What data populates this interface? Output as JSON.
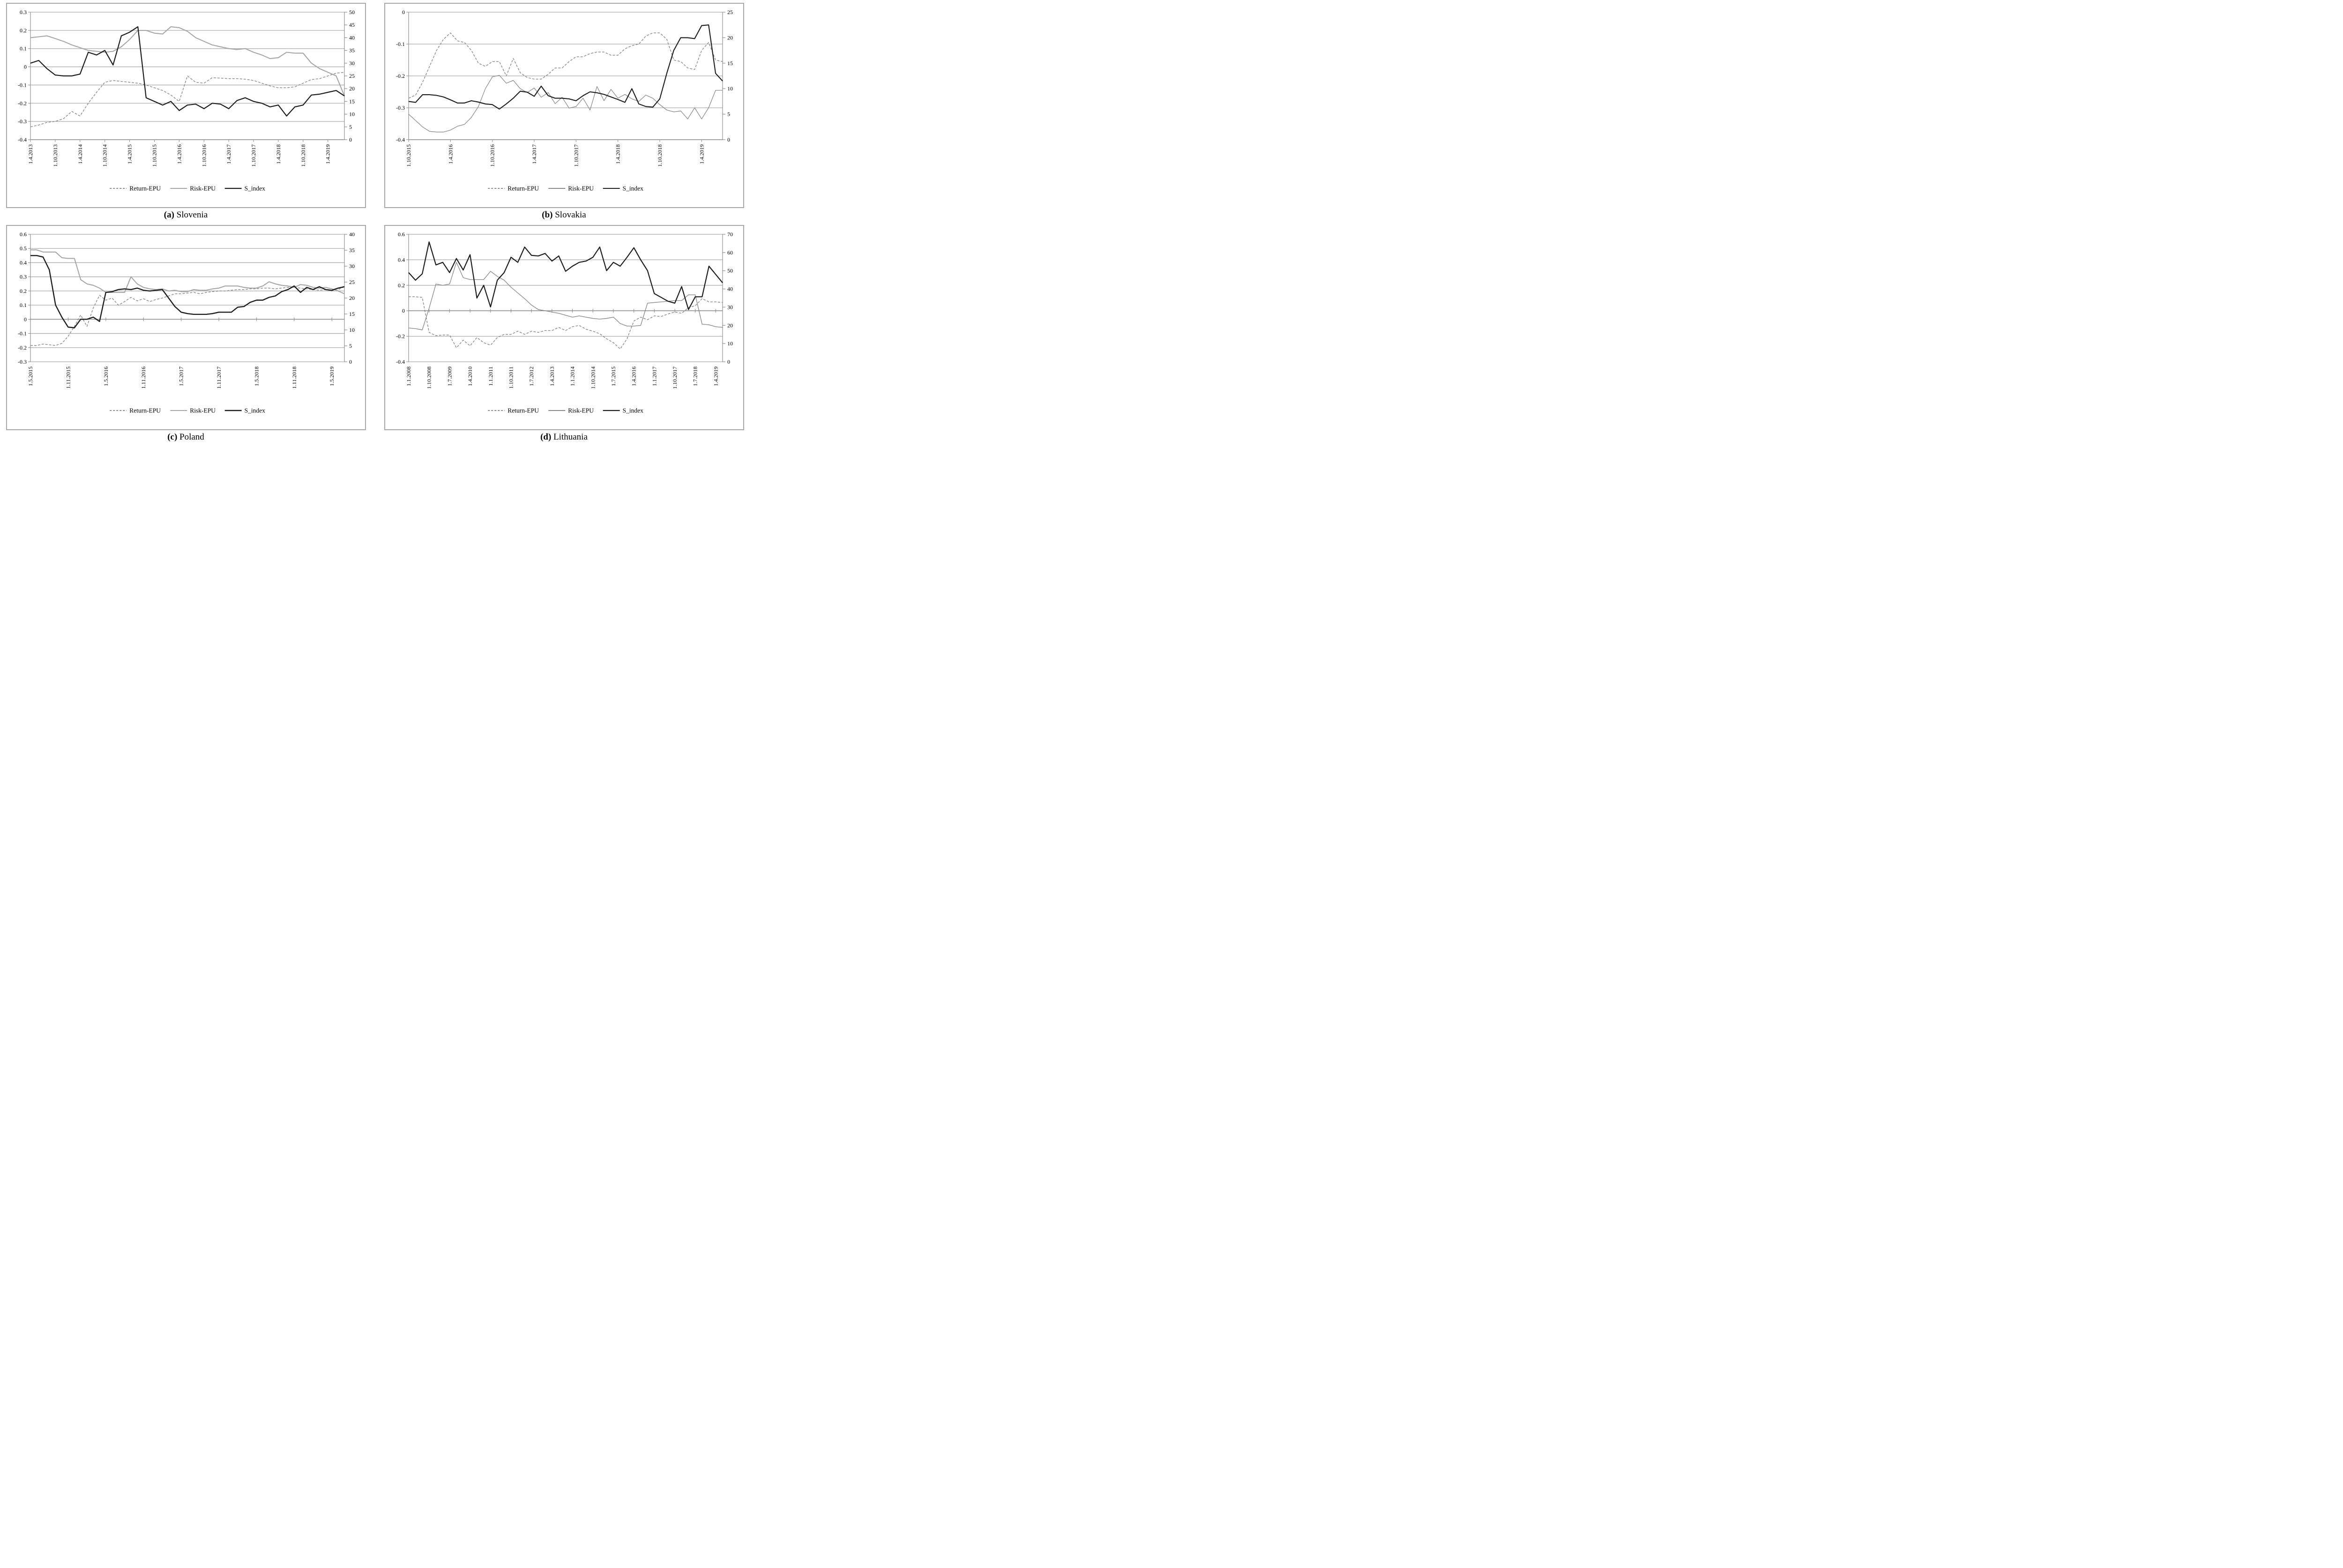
{
  "page": {
    "background": "#ffffff",
    "gridline_color": "#ababab",
    "axis_color": "#8f8f8f",
    "box_border_color": "#a8a8a8",
    "text_color": "#000000"
  },
  "chart_data": [
    {
      "type": "line",
      "id": "slovenia",
      "caption_prefix": "(a)",
      "caption_name": "Slovenia",
      "y_left": {
        "max": 0.3,
        "min": -0.4,
        "ticks": [
          [
            "0.3",
            0.3
          ],
          [
            "0.2",
            0.2
          ],
          [
            "0.1",
            0.1
          ],
          [
            "0",
            0
          ],
          [
            "-0.1",
            -0.1
          ],
          [
            "-0.2",
            -0.2
          ],
          [
            "-0.3",
            -0.3
          ],
          [
            "-0.4",
            -0.4
          ]
        ]
      },
      "y_right_labels": [
        "50",
        "45",
        "40",
        "35",
        "30",
        "25",
        "20",
        "15",
        "10",
        "5",
        "0"
      ],
      "x_tick_step": 3,
      "x_axis_cross": -0.4,
      "x_tick_labels": [
        "1.4.2013",
        "1.10.2013",
        "1.4.2014",
        "1.10.2014",
        "1.4.2015",
        "1.10.2015",
        "1.4.2016",
        "1.10.2016",
        "1.4.2017",
        "1.10.2017",
        "1.4.2018",
        "1.10.2018",
        "1.4.2019"
      ],
      "series": [
        {
          "name": "Return-EPU",
          "key": "return_epu",
          "stroke": "#8c8c8c",
          "width": 1.5,
          "dash": "5,3",
          "values": [
            -0.33,
            -0.32,
            -0.305,
            -0.3,
            -0.285,
            -0.245,
            -0.27,
            -0.2,
            -0.14,
            -0.085,
            -0.075,
            -0.08,
            -0.085,
            -0.09,
            -0.1,
            -0.115,
            -0.13,
            -0.155,
            -0.19,
            -0.05,
            -0.085,
            -0.09,
            -0.06,
            -0.062,
            -0.065,
            -0.065,
            -0.068,
            -0.075,
            -0.09,
            -0.105,
            -0.115,
            -0.115,
            -0.11,
            -0.09,
            -0.07,
            -0.065,
            -0.05,
            -0.035,
            -0.03
          ]
        },
        {
          "name": "Risk-EPU",
          "key": "risk_epu",
          "stroke": "#a6a6a6",
          "width": 2.1,
          "dash": null,
          "values": [
            0.16,
            0.165,
            0.17,
            0.155,
            0.14,
            0.12,
            0.105,
            0.09,
            0.085,
            0.08,
            0.085,
            0.11,
            0.15,
            0.2,
            0.2,
            0.185,
            0.18,
            0.22,
            0.215,
            0.195,
            0.16,
            0.14,
            0.12,
            0.11,
            0.1,
            0.095,
            0.1,
            0.08,
            0.065,
            0.045,
            0.05,
            0.08,
            0.075,
            0.075,
            0.02,
            -0.01,
            -0.03,
            -0.05,
            -0.16
          ]
        },
        {
          "name": "S_index",
          "key": "s_index",
          "stroke": "#1c1c1c",
          "width": 2.2,
          "dash": null,
          "values": [
            0.02,
            0.035,
            -0.01,
            -0.045,
            -0.05,
            -0.05,
            -0.04,
            0.08,
            0.065,
            0.09,
            0.01,
            0.17,
            0.19,
            0.22,
            -0.17,
            -0.19,
            -0.21,
            -0.19,
            -0.24,
            -0.21,
            -0.205,
            -0.23,
            -0.2,
            -0.205,
            -0.23,
            -0.185,
            -0.17,
            -0.19,
            -0.2,
            -0.22,
            -0.21,
            -0.27,
            -0.22,
            -0.21,
            -0.155,
            -0.15,
            -0.14,
            -0.13,
            -0.16
          ]
        }
      ]
    },
    {
      "type": "line",
      "id": "slovakia",
      "caption_prefix": "(b)",
      "caption_name": "Slovakia",
      "y_left": {
        "max": 0,
        "min": -0.4,
        "ticks": [
          [
            "0",
            0
          ],
          [
            "-0.1",
            -0.1
          ],
          [
            "-0.2",
            -0.2
          ],
          [
            "-0.3",
            -0.3
          ],
          [
            "-0.4",
            -0.4
          ]
        ]
      },
      "y_right_labels": [
        "25",
        "20",
        "15",
        "10",
        "5",
        "0"
      ],
      "x_tick_step": 6,
      "x_axis_cross": -0.4,
      "x_tick_labels": [
        "1.10.2015",
        "1.4.2016",
        "1.10.2016",
        "1.4.2017",
        "1.10.2017",
        "1.4.2018",
        "1.10.2018",
        "1.4.2019"
      ],
      "series": [
        {
          "name": "Return-EPU",
          "key": "return_epu",
          "stroke": "#8c8c8c",
          "width": 1.5,
          "dash": "5,3",
          "values": [
            -0.27,
            -0.26,
            -0.22,
            -0.17,
            -0.12,
            -0.085,
            -0.065,
            -0.09,
            -0.095,
            -0.12,
            -0.16,
            -0.17,
            -0.155,
            -0.155,
            -0.2,
            -0.145,
            -0.19,
            -0.205,
            -0.21,
            -0.21,
            -0.195,
            -0.175,
            -0.175,
            -0.155,
            -0.14,
            -0.14,
            -0.13,
            -0.125,
            -0.125,
            -0.135,
            -0.135,
            -0.115,
            -0.105,
            -0.1,
            -0.075,
            -0.065,
            -0.065,
            -0.085,
            -0.15,
            -0.155,
            -0.175,
            -0.18,
            -0.12,
            -0.095,
            -0.15,
            -0.155
          ]
        },
        {
          "name": "Risk-EPU",
          "key": "risk_epu",
          "stroke": "#8a8a8a",
          "width": 1.3,
          "dash": null,
          "values": [
            -0.32,
            -0.34,
            -0.36,
            -0.374,
            -0.376,
            -0.376,
            -0.37,
            -0.358,
            -0.352,
            -0.33,
            -0.296,
            -0.24,
            -0.203,
            -0.198,
            -0.223,
            -0.214,
            -0.24,
            -0.252,
            -0.238,
            -0.267,
            -0.252,
            -0.287,
            -0.267,
            -0.301,
            -0.296,
            -0.27,
            -0.307,
            -0.233,
            -0.278,
            -0.242,
            -0.27,
            -0.258,
            -0.272,
            -0.28,
            -0.26,
            -0.27,
            -0.29,
            -0.307,
            -0.313,
            -0.31,
            -0.335,
            -0.3,
            -0.335,
            -0.3,
            -0.245,
            -0.245
          ]
        },
        {
          "name": "S_index",
          "key": "s_index",
          "stroke": "#1c1c1c",
          "width": 2.1,
          "dash": null,
          "values": [
            -0.28,
            -0.283,
            -0.259,
            -0.259,
            -0.261,
            -0.266,
            -0.275,
            -0.285,
            -0.285,
            -0.278,
            -0.282,
            -0.288,
            -0.29,
            -0.304,
            -0.288,
            -0.27,
            -0.248,
            -0.251,
            -0.264,
            -0.232,
            -0.262,
            -0.27,
            -0.27,
            -0.272,
            -0.278,
            -0.262,
            -0.25,
            -0.253,
            -0.258,
            -0.266,
            -0.274,
            -0.283,
            -0.24,
            -0.288,
            -0.296,
            -0.298,
            -0.272,
            -0.192,
            -0.12,
            -0.08,
            -0.08,
            -0.083,
            -0.042,
            -0.04,
            -0.192,
            -0.216
          ]
        }
      ]
    },
    {
      "type": "line",
      "id": "poland",
      "caption_prefix": "(c)",
      "caption_name": "Poland",
      "y_left": {
        "max": 0.6,
        "min": -0.3,
        "ticks": [
          [
            "0.6",
            0.6
          ],
          [
            "0.5",
            0.5
          ],
          [
            "0.4",
            0.4
          ],
          [
            "0.3",
            0.3
          ],
          [
            "0.2",
            0.2
          ],
          [
            "0.1",
            0.1
          ],
          [
            "0",
            0
          ],
          [
            "-0.1",
            -0.1
          ],
          [
            "-0.2",
            -0.2
          ],
          [
            "-0.3",
            -0.3
          ]
        ]
      },
      "y_right_labels": [
        "40",
        "35",
        "30",
        "25",
        "20",
        "15",
        "10",
        "5",
        "0"
      ],
      "x_tick_step": 6,
      "x_axis_cross": 0,
      "x_tick_labels": [
        "1.5.2015",
        "1.11.2015",
        "1.5.2016",
        "1.11.2016",
        "1.5.2017",
        "1.11.2017",
        "1.5.2018",
        "1.11.2018",
        "1.5.2019"
      ],
      "series": [
        {
          "name": "Return-EPU",
          "key": "return_epu",
          "stroke": "#8c8c8c",
          "width": 1.5,
          "dash": "5,3",
          "values": [
            -0.185,
            -0.185,
            -0.175,
            -0.18,
            -0.185,
            -0.17,
            -0.12,
            -0.05,
            0.03,
            -0.05,
            0.08,
            0.17,
            0.135,
            0.15,
            0.1,
            0.125,
            0.155,
            0.13,
            0.145,
            0.125,
            0.14,
            0.15,
            0.165,
            0.18,
            0.18,
            0.185,
            0.19,
            0.18,
            0.19,
            0.195,
            0.2,
            0.2,
            0.205,
            0.21,
            0.21,
            0.215,
            0.215,
            0.22,
            0.22,
            0.215,
            0.22,
            0.225,
            0.225,
            0.22,
            0.215,
            0.21,
            0.205,
            0.21,
            0.2,
            0.21,
            0.23
          ]
        },
        {
          "name": "Risk-EPU",
          "key": "risk_epu",
          "stroke": "#a6a6a6",
          "width": 2.1,
          "dash": null,
          "values": [
            0.49,
            0.49,
            0.475,
            0.475,
            0.475,
            0.435,
            0.43,
            0.43,
            0.28,
            0.25,
            0.24,
            0.22,
            0.19,
            0.19,
            0.19,
            0.19,
            0.3,
            0.25,
            0.225,
            0.215,
            0.21,
            0.215,
            0.2,
            0.205,
            0.195,
            0.195,
            0.21,
            0.205,
            0.205,
            0.215,
            0.22,
            0.235,
            0.235,
            0.235,
            0.225,
            0.22,
            0.22,
            0.235,
            0.265,
            0.25,
            0.24,
            0.235,
            0.225,
            0.245,
            0.24,
            0.225,
            0.22,
            0.225,
            0.215,
            0.2,
            0.18
          ]
        },
        {
          "name": "S_index",
          "key": "s_index",
          "stroke": "#1c1c1c",
          "width": 2.4,
          "dash": null,
          "values": [
            0.45,
            0.45,
            0.44,
            0.35,
            0.1,
            0.015,
            -0.055,
            -0.06,
            0.0,
            0.0,
            0.015,
            -0.015,
            0.19,
            0.195,
            0.21,
            0.215,
            0.21,
            0.22,
            0.205,
            0.2,
            0.205,
            0.21,
            0.15,
            0.09,
            0.05,
            0.04,
            0.035,
            0.035,
            0.035,
            0.04,
            0.05,
            0.05,
            0.05,
            0.085,
            0.09,
            0.12,
            0.135,
            0.135,
            0.155,
            0.165,
            0.195,
            0.21,
            0.235,
            0.19,
            0.225,
            0.21,
            0.23,
            0.21,
            0.205,
            0.22,
            0.23
          ]
        }
      ]
    },
    {
      "type": "line",
      "id": "lithuania",
      "caption_prefix": "(d)",
      "caption_name": "Lithuania",
      "y_left": {
        "max": 0.6,
        "min": -0.4,
        "ticks": [
          [
            "0.6",
            0.6
          ],
          [
            "0.4",
            0.4
          ],
          [
            "0.2",
            0.2
          ],
          [
            "0",
            0
          ],
          [
            "-0.2",
            -0.2
          ],
          [
            "-0.4",
            -0.4
          ]
        ]
      },
      "y_right_labels": [
        "70",
        "60",
        "50",
        "40",
        "30",
        "20",
        "10",
        "0"
      ],
      "x_tick_step": 3,
      "x_axis_cross": 0,
      "x_tick_labels": [
        "1.1.2008",
        "1.10.2008",
        "1.7.2009",
        "1.4.2010",
        "1.1.2011",
        "1.10.2011",
        "1.7.2012",
        "1.4.2013",
        "1.1.2014",
        "1.10.2014",
        "1.7.2015",
        "1.4.2016",
        "1.1.2017",
        "1.10.2017",
        "1.7.2018",
        "1.4.2019"
      ],
      "series": [
        {
          "name": "Return-EPU",
          "key": "return_epu",
          "stroke": "#8c8c8c",
          "width": 1.5,
          "dash": "5,3",
          "values": [
            0.11,
            0.11,
            0.105,
            -0.17,
            -0.195,
            -0.19,
            -0.19,
            -0.29,
            -0.23,
            -0.275,
            -0.21,
            -0.25,
            -0.27,
            -0.21,
            -0.185,
            -0.185,
            -0.16,
            -0.185,
            -0.16,
            -0.17,
            -0.155,
            -0.155,
            -0.13,
            -0.155,
            -0.125,
            -0.115,
            -0.145,
            -0.16,
            -0.18,
            -0.22,
            -0.25,
            -0.3,
            -0.22,
            -0.08,
            -0.05,
            -0.07,
            -0.04,
            -0.045,
            -0.025,
            -0.01,
            -0.02,
            0.025,
            0.04,
            0.095,
            0.07,
            0.07,
            0.065
          ]
        },
        {
          "name": "Risk-EPU",
          "key": "risk_epu",
          "stroke": "#8a8a8a",
          "width": 1.4,
          "dash": null,
          "values": [
            -0.135,
            -0.14,
            -0.15,
            0.02,
            0.21,
            0.2,
            0.21,
            0.38,
            0.26,
            0.245,
            0.245,
            0.245,
            0.31,
            0.27,
            0.24,
            0.185,
            0.14,
            0.095,
            0.045,
            0.01,
            0.0,
            -0.01,
            -0.02,
            -0.035,
            -0.05,
            -0.04,
            -0.05,
            -0.06,
            -0.065,
            -0.06,
            -0.05,
            -0.1,
            -0.12,
            -0.12,
            -0.115,
            0.06,
            0.065,
            0.07,
            0.075,
            0.08,
            0.08,
            0.125,
            0.125,
            -0.105,
            -0.11,
            -0.125,
            -0.13
          ]
        },
        {
          "name": "S_index",
          "key": "s_index",
          "stroke": "#1c1c1c",
          "width": 2.2,
          "dash": null,
          "values": [
            0.3,
            0.24,
            0.29,
            0.54,
            0.36,
            0.38,
            0.3,
            0.41,
            0.32,
            0.44,
            0.1,
            0.2,
            0.03,
            0.24,
            0.3,
            0.42,
            0.38,
            0.5,
            0.435,
            0.43,
            0.45,
            0.39,
            0.43,
            0.31,
            0.35,
            0.38,
            0.39,
            0.42,
            0.5,
            0.315,
            0.38,
            0.35,
            0.42,
            0.495,
            0.4,
            0.315,
            0.135,
            0.105,
            0.075,
            0.06,
            0.19,
            0.01,
            0.11,
            0.11,
            0.35,
            0.285,
            0.22
          ]
        }
      ]
    }
  ]
}
